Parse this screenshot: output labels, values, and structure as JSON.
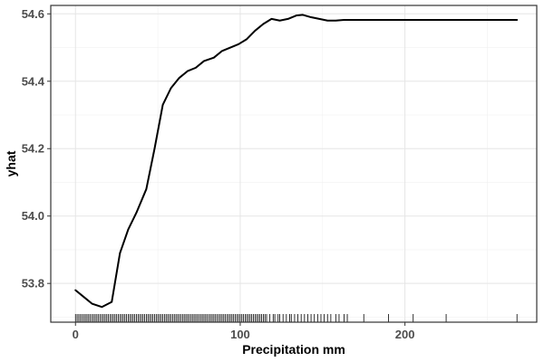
{
  "chart_data": {
    "type": "line",
    "title": "",
    "xlabel": "Precipitation mm",
    "ylabel": "yhat",
    "xlim": [
      -15,
      280
    ],
    "ylim": [
      53.685,
      54.625
    ],
    "x_ticks": [
      0,
      100,
      200
    ],
    "y_ticks": [
      53.8,
      54.0,
      54.2,
      54.4,
      54.6
    ],
    "y_tick_labels": [
      "53.8",
      "54.0",
      "54.2",
      "54.4",
      "54.6"
    ],
    "grid": true,
    "legend": "none",
    "line_color": "#000000",
    "series": [
      {
        "x": [
          0,
          5,
          10,
          16,
          22,
          27,
          32,
          37,
          43,
          48,
          53,
          58,
          63,
          68,
          73,
          78,
          84,
          89,
          94,
          99,
          104,
          109,
          114,
          119,
          124,
          129,
          134,
          138,
          143,
          148,
          153,
          158,
          163,
          180,
          200,
          230,
          268
        ],
        "values": [
          53.78,
          53.76,
          53.74,
          53.73,
          53.745,
          53.89,
          53.96,
          54.01,
          54.08,
          54.2,
          54.33,
          54.38,
          54.41,
          54.43,
          54.44,
          54.46,
          54.47,
          54.49,
          54.5,
          54.51,
          54.525,
          54.55,
          54.57,
          54.585,
          54.58,
          54.585,
          54.595,
          54.597,
          54.59,
          54.585,
          54.58,
          54.58,
          54.582,
          54.582,
          54.582,
          54.582,
          54.582
        ]
      }
    ],
    "rug_x": [
      0,
      1,
      2,
      3,
      4,
      5,
      6,
      7,
      8,
      9,
      10,
      11,
      12,
      13,
      14,
      15,
      16,
      17,
      18,
      19,
      20,
      21,
      22,
      23,
      24,
      25,
      26,
      27,
      28,
      29,
      30,
      31,
      32,
      33,
      34,
      35,
      36,
      37,
      38,
      39,
      40,
      41,
      42,
      43,
      44,
      45,
      46,
      47,
      48,
      49,
      50,
      51,
      52,
      53,
      54,
      55,
      56,
      57,
      58,
      59,
      60,
      61,
      62,
      63,
      64,
      65,
      66,
      67,
      68,
      69,
      70,
      71,
      72,
      73,
      74,
      75,
      76,
      77,
      78,
      79,
      80,
      81,
      82,
      83,
      84,
      85,
      86,
      87,
      88,
      89,
      90,
      91,
      92,
      93,
      94,
      95,
      96,
      97,
      98,
      99,
      100,
      101,
      102,
      103,
      104,
      105,
      106,
      107,
      108,
      109,
      110,
      111,
      112,
      113,
      114,
      115,
      116,
      118,
      120,
      121,
      123,
      124,
      126,
      128,
      130,
      131,
      133,
      135,
      137,
      139,
      141,
      143,
      145,
      147,
      149,
      151,
      153,
      155,
      158,
      160,
      163,
      165,
      175,
      190,
      205,
      225,
      268
    ]
  }
}
